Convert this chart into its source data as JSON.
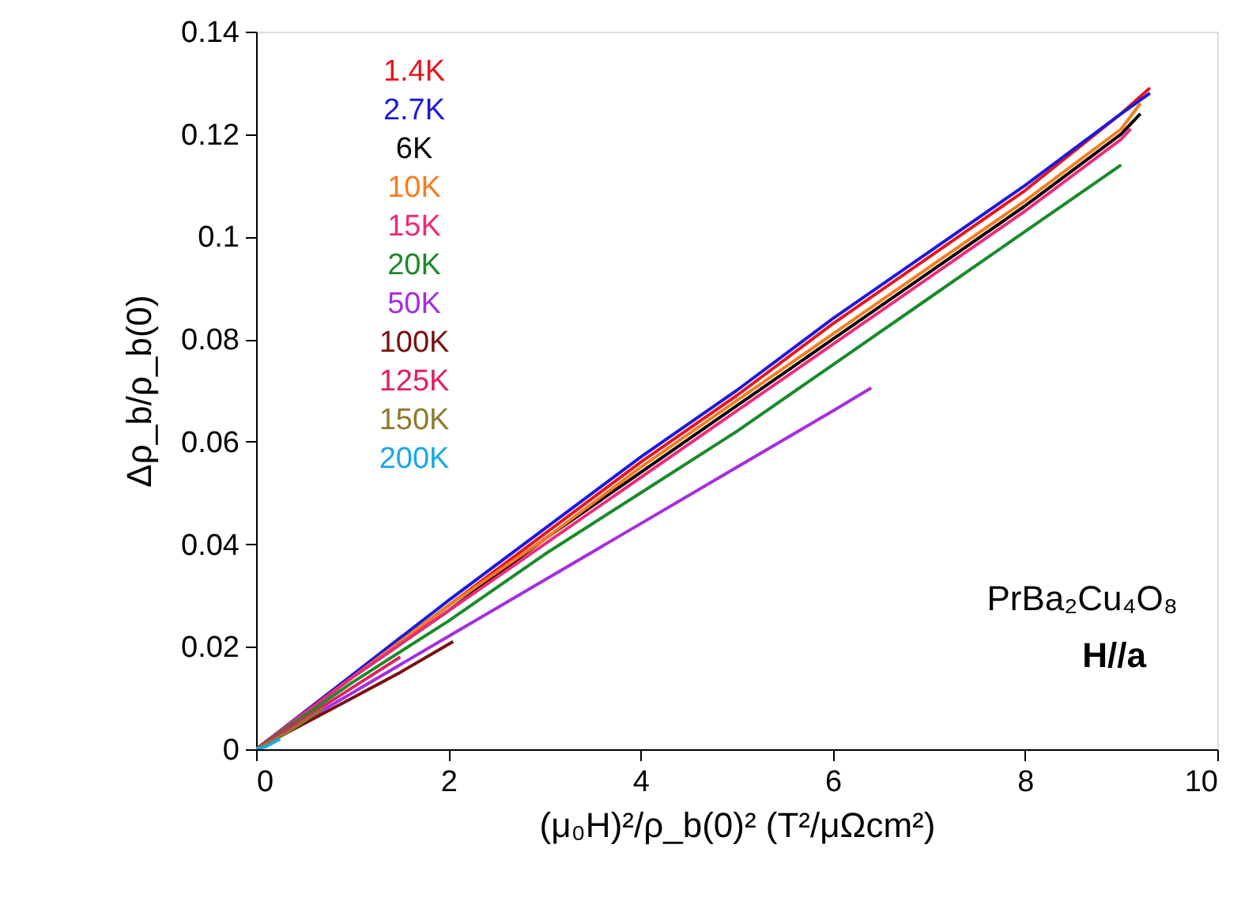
{
  "chart_data": {
    "type": "line",
    "xlabel": "(μ₀H)²/ρ_b(0)² (T²/μΩcm²)",
    "ylabel": "Δρ_b/ρ_b(0)",
    "xlim": [
      0,
      10
    ],
    "xticks": [
      0,
      2,
      4,
      6,
      8,
      10
    ],
    "ylim": [
      0,
      0.14
    ],
    "yticks": [
      0,
      0.02,
      0.04,
      0.06,
      0.08,
      0.1,
      0.12,
      0.14
    ],
    "grid": false,
    "legend": "top left",
    "marker": "none",
    "line_style": "solid",
    "annotations": [
      "PrBa₂Cu₄O₈",
      "H//a"
    ],
    "series": [
      {
        "name": "1.4K",
        "color": "#e8141c",
        "x": [
          0,
          1,
          2,
          3,
          4,
          5,
          6,
          7,
          8,
          9,
          9.3
        ],
        "values": [
          0,
          0.014,
          0.028,
          0.042,
          0.056,
          0.069,
          0.083,
          0.096,
          0.109,
          0.124,
          0.129
        ]
      },
      {
        "name": "2.7K",
        "color": "#1a1adc",
        "x": [
          0,
          1,
          2,
          3,
          4,
          5,
          6,
          7,
          8,
          9,
          9.3
        ],
        "values": [
          0,
          0.0145,
          0.029,
          0.043,
          0.057,
          0.07,
          0.084,
          0.097,
          0.11,
          0.124,
          0.128
        ]
      },
      {
        "name": "6K",
        "color": "#000000",
        "x": [
          0,
          1,
          2,
          3,
          4,
          5,
          6,
          7,
          8,
          9,
          9.2
        ],
        "values": [
          0,
          0.014,
          0.027,
          0.041,
          0.054,
          0.067,
          0.08,
          0.093,
          0.106,
          0.12,
          0.124
        ]
      },
      {
        "name": "10K",
        "color": "#f57c20",
        "x": [
          0,
          1,
          2,
          3,
          4,
          5,
          6,
          7,
          8,
          9,
          9.2
        ],
        "values": [
          0,
          0.014,
          0.028,
          0.041,
          0.055,
          0.068,
          0.081,
          0.094,
          0.107,
          0.121,
          0.126
        ]
      },
      {
        "name": "15K",
        "color": "#ee2a7b",
        "x": [
          0,
          1,
          2,
          3,
          4,
          5,
          6,
          7,
          8,
          9,
          9.1
        ],
        "values": [
          0,
          0.014,
          0.027,
          0.04,
          0.053,
          0.066,
          0.079,
          0.092,
          0.105,
          0.119,
          0.121
        ]
      },
      {
        "name": "20K",
        "color": "#1b8a2a",
        "x": [
          0,
          1,
          2,
          3,
          4,
          5,
          6,
          7,
          8,
          9
        ],
        "values": [
          0,
          0.013,
          0.025,
          0.038,
          0.05,
          0.062,
          0.075,
          0.088,
          0.101,
          0.114
        ]
      },
      {
        "name": "50K",
        "color": "#a52ee0",
        "x": [
          0,
          1,
          2,
          3,
          4,
          5,
          6,
          6.4
        ],
        "values": [
          0,
          0.011,
          0.022,
          0.033,
          0.044,
          0.055,
          0.066,
          0.0705
        ]
      },
      {
        "name": "100K",
        "color": "#7a1010",
        "x": [
          0,
          0.5,
          1,
          1.5,
          2.05
        ],
        "values": [
          0,
          0.005,
          0.01,
          0.015,
          0.021
        ]
      },
      {
        "name": "125K",
        "color": "#e02060",
        "x": [
          0,
          0.5,
          1,
          1.5
        ],
        "values": [
          0,
          0.006,
          0.012,
          0.018
        ]
      },
      {
        "name": "150K",
        "color": "#8c7a2e",
        "x": [
          0,
          0.3,
          0.7
        ],
        "values": [
          0,
          0.003,
          0.008
        ]
      },
      {
        "name": "200K",
        "color": "#1aa8e8",
        "x": [
          0,
          0.1,
          0.25
        ],
        "values": [
          0,
          0.0005,
          0.002
        ]
      }
    ]
  }
}
